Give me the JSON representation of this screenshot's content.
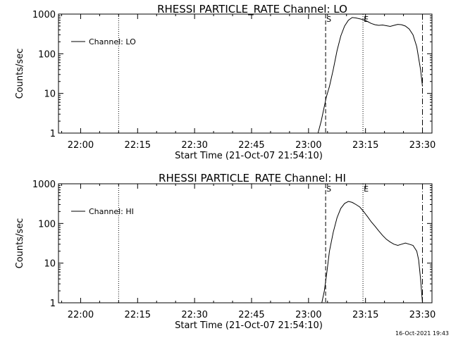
{
  "footer": {
    "timestamp": "16-Oct-2021 19:43"
  },
  "chart_data": [
    {
      "type": "line",
      "title": "RHESSI PARTICLE_RATE Channel: LO",
      "xlabel": "Start Time (21-Oct-07 21:54:10)",
      "ylabel": "Counts/sec",
      "y_scale": "log",
      "ylim": [
        1,
        1000
      ],
      "xlim": [
        "21:54:10",
        "23:32:30"
      ],
      "x_ticks": [
        "22:00",
        "22:15",
        "22:30",
        "22:45",
        "23:00",
        "23:15",
        "23:30"
      ],
      "y_ticks": [
        "1",
        "10",
        "100",
        "1000"
      ],
      "legend": {
        "placement": "top-left",
        "entries": [
          "Channel: LO"
        ]
      },
      "markers": [
        {
          "time": "22:10:00",
          "style": "dotted",
          "label": ""
        },
        {
          "time": "23:04:30",
          "style": "dashed",
          "label": "S"
        },
        {
          "time": "23:14:20",
          "style": "dotted",
          "label": "E"
        },
        {
          "time": "23:30:00",
          "style": "dash-dot",
          "label": ""
        }
      ],
      "series": [
        {
          "name": "Channel: LO",
          "points": [
            [
              "23:02:30",
              1
            ],
            [
              "23:03:20",
              2
            ],
            [
              "23:04:00",
              4
            ],
            [
              "23:04:40",
              8
            ],
            [
              "23:05:30",
              15
            ],
            [
              "23:06:30",
              40
            ],
            [
              "23:07:30",
              120
            ],
            [
              "23:08:30",
              280
            ],
            [
              "23:09:30",
              500
            ],
            [
              "23:10:30",
              700
            ],
            [
              "23:11:30",
              820
            ],
            [
              "23:12:30",
              800
            ],
            [
              "23:13:30",
              760
            ],
            [
              "23:14:30",
              720
            ],
            [
              "23:15:30",
              650
            ],
            [
              "23:16:30",
              580
            ],
            [
              "23:17:30",
              540
            ],
            [
              "23:18:30",
              520
            ],
            [
              "23:19:30",
              530
            ],
            [
              "23:20:30",
              510
            ],
            [
              "23:21:30",
              490
            ],
            [
              "23:22:30",
              520
            ],
            [
              "23:23:30",
              550
            ],
            [
              "23:24:30",
              540
            ],
            [
              "23:25:30",
              500
            ],
            [
              "23:26:30",
              420
            ],
            [
              "23:27:30",
              300
            ],
            [
              "23:28:30",
              150
            ],
            [
              "23:29:30",
              40
            ],
            [
              "23:30:00",
              15
            ]
          ]
        }
      ]
    },
    {
      "type": "line",
      "title": "RHESSI PARTICLE_RATE Channel: HI",
      "xlabel": "Start Time (21-Oct-07 21:54:10)",
      "ylabel": "Counts/sec",
      "y_scale": "log",
      "ylim": [
        1,
        1000
      ],
      "xlim": [
        "21:54:10",
        "23:32:30"
      ],
      "x_ticks": [
        "22:00",
        "22:15",
        "22:30",
        "22:45",
        "23:00",
        "23:15",
        "23:30"
      ],
      "y_ticks": [
        "1",
        "10",
        "100",
        "1000"
      ],
      "legend": {
        "placement": "top-left",
        "entries": [
          "Channel: HI"
        ]
      },
      "markers": [
        {
          "time": "22:10:00",
          "style": "dotted",
          "label": ""
        },
        {
          "time": "23:04:30",
          "style": "dashed",
          "label": "S"
        },
        {
          "time": "23:14:20",
          "style": "dotted",
          "label": "E"
        },
        {
          "time": "23:30:00",
          "style": "dash-dot",
          "label": ""
        }
      ],
      "series": [
        {
          "name": "Channel: HI",
          "points": [
            [
              "23:03:30",
              1
            ],
            [
              "23:04:10",
              2
            ],
            [
              "23:04:50",
              6
            ],
            [
              "23:05:30",
              20
            ],
            [
              "23:06:30",
              60
            ],
            [
              "23:07:30",
              140
            ],
            [
              "23:08:30",
              240
            ],
            [
              "23:09:30",
              320
            ],
            [
              "23:10:30",
              360
            ],
            [
              "23:11:30",
              340
            ],
            [
              "23:12:30",
              300
            ],
            [
              "23:13:30",
              260
            ],
            [
              "23:14:30",
              200
            ],
            [
              "23:15:30",
              150
            ],
            [
              "23:16:30",
              110
            ],
            [
              "23:17:30",
              85
            ],
            [
              "23:18:30",
              65
            ],
            [
              "23:19:30",
              50
            ],
            [
              "23:20:30",
              40
            ],
            [
              "23:21:30",
              34
            ],
            [
              "23:22:30",
              30
            ],
            [
              "23:23:30",
              28
            ],
            [
              "23:24:30",
              30
            ],
            [
              "23:25:30",
              32
            ],
            [
              "23:26:30",
              30
            ],
            [
              "23:27:30",
              28
            ],
            [
              "23:28:30",
              20
            ],
            [
              "23:29:00",
              12
            ],
            [
              "23:29:30",
              4
            ],
            [
              "23:30:00",
              1
            ]
          ]
        }
      ]
    }
  ]
}
